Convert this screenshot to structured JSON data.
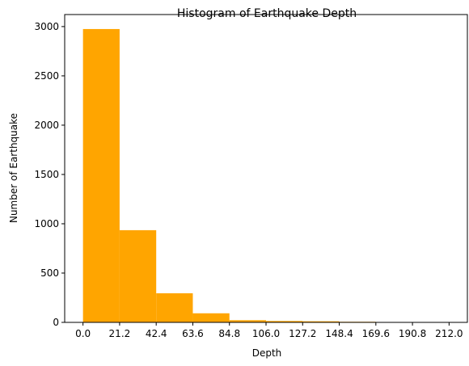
{
  "chart_data": {
    "type": "bar",
    "title": "Histogram of Earthquake Depth",
    "xlabel": "Depth",
    "ylabel": "Number of Earthquake",
    "bin_edges": [
      0.0,
      21.2,
      42.4,
      63.6,
      84.8,
      106.0,
      127.2,
      148.4,
      169.6,
      190.8,
      212.0
    ],
    "x_tick_labels": [
      "0.0",
      "21.2",
      "42.4",
      "63.6",
      "84.8",
      "106.0",
      "127.2",
      "148.4",
      "169.6",
      "190.8",
      "212.0"
    ],
    "values": [
      2975,
      935,
      295,
      92,
      22,
      14,
      11,
      6,
      2,
      1
    ],
    "xlim": [
      -10.6,
      222.6
    ],
    "ylim": [
      0,
      3122
    ],
    "y_ticks": [
      0,
      500,
      1000,
      1500,
      2000,
      2500,
      3000
    ],
    "y_tick_labels": [
      "0",
      "500",
      "1000",
      "1500",
      "2000",
      "2500",
      "3000"
    ],
    "grid": false,
    "legend": "none",
    "bar_color": "#ffa500"
  }
}
